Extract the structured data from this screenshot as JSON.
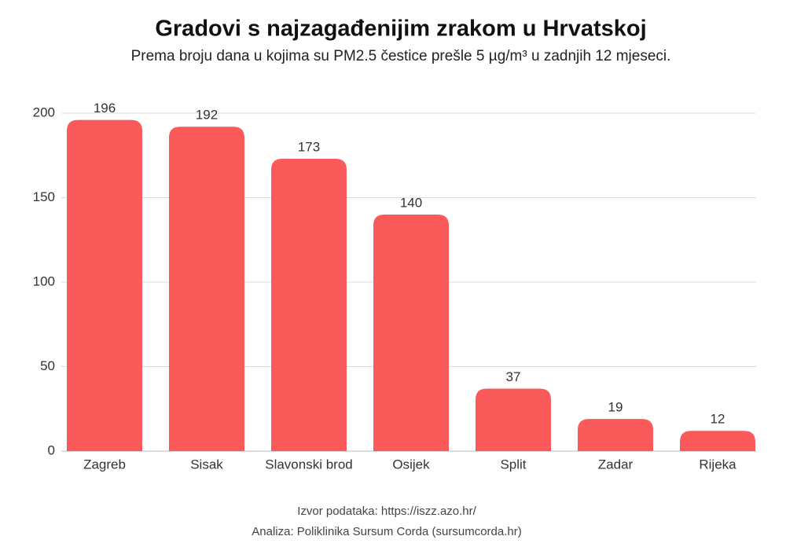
{
  "chart_data": {
    "type": "bar",
    "title": "Gradovi s najzagađenijim zrakom u Hrvatskoj",
    "subtitle": "Prema broju dana u kojima su PM2.5 čestice prešle 5 µg/m³ u zadnjih 12 mjeseci.",
    "categories": [
      "Zagreb",
      "Sisak",
      "Slavonski brod",
      "Osijek",
      "Split",
      "Zadar",
      "Rijeka"
    ],
    "values": [
      196,
      192,
      173,
      140,
      37,
      19,
      12
    ],
    "color": "#fa5a5a",
    "ylim": [
      0,
      200
    ],
    "yticks": [
      0,
      50,
      100,
      150,
      200
    ],
    "grid": true,
    "footnotes": [
      "Izvor podataka: https://iszz.azo.hr/",
      "Analiza: Poliklinika Sursum Corda (sursumcorda.hr)"
    ]
  }
}
